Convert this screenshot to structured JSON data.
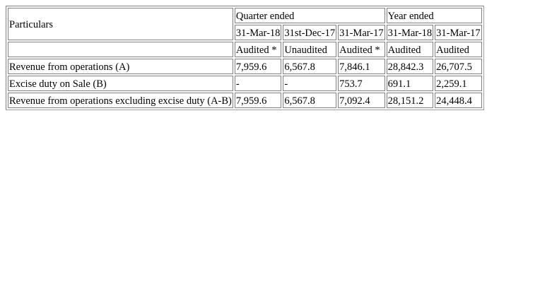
{
  "table": {
    "header": {
      "particulars": "Particulars",
      "quarter_ended": "Quarter ended",
      "year_ended": "Year ended",
      "dates": [
        "31-Mar-18",
        "31st-Dec-17",
        "31-Mar-17",
        "31-Mar-18",
        "31-Mar-17"
      ],
      "status": [
        "Audited *",
        "Unaudited",
        "Audited *",
        "Audited",
        "Audited"
      ]
    },
    "rows": [
      {
        "label": "Revenue from operations (A)",
        "values": [
          "7,959.6",
          "6,567.8",
          "7,846.1",
          "28,842.3",
          "26,707.5"
        ]
      },
      {
        "label": "Excise duty on Sale (B)",
        "values": [
          "-",
          "-",
          "753.7",
          "691.1",
          "2,259.1"
        ]
      },
      {
        "label": "Revenue from operations excluding excise duty (A-B)",
        "values": [
          "7,959.6",
          "6,567.8",
          "7,092.4",
          "28,151.2",
          "24,448.4"
        ]
      }
    ]
  }
}
